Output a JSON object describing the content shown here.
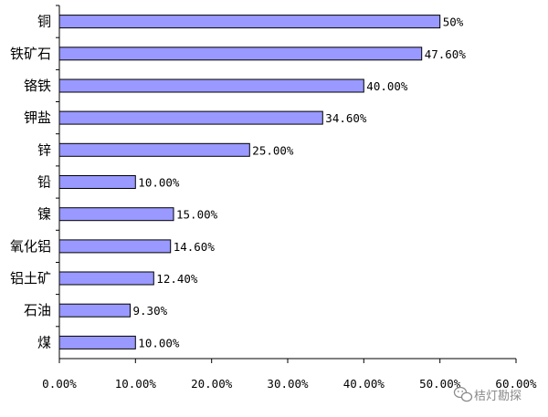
{
  "chart_data": {
    "type": "bar",
    "orientation": "horizontal",
    "categories": [
      "铜",
      "铁矿石",
      "铬铁",
      "钾盐",
      "锌",
      "铅",
      "镍",
      "氧化铝",
      "铝土矿",
      "石油",
      "煤"
    ],
    "values": [
      50,
      47.6,
      40,
      34.6,
      25,
      10,
      15,
      14.6,
      12.4,
      9.3,
      10
    ],
    "value_labels": [
      "50%",
      "47.60%",
      "40.00%",
      "34.60%",
      "25.00%",
      "10.00%",
      "15.00%",
      "14.60%",
      "12.40%",
      "9.30%",
      "10.00%"
    ],
    "x_ticks": [
      0,
      10,
      20,
      30,
      40,
      50,
      60
    ],
    "x_tick_labels": [
      "0.00%",
      "10.00%",
      "20.00%",
      "30.00%",
      "40.00%",
      "50.00%",
      "60.00%"
    ],
    "xlim": [
      0,
      60
    ],
    "grid": false,
    "legend": "none",
    "bar_color": "#9999ff",
    "bar_edge_color": "#000000"
  },
  "watermark": {
    "icon": "wechat-icon",
    "text": "桔灯勘探"
  }
}
